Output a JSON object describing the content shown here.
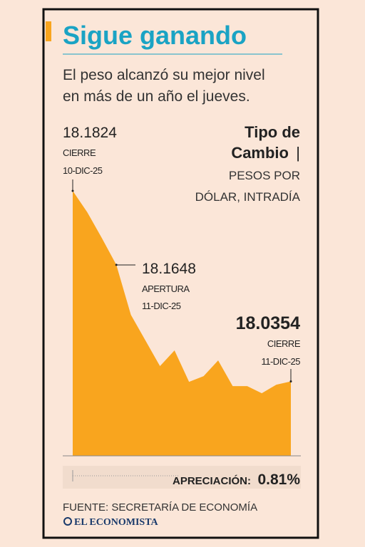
{
  "title": "Sigue ganando",
  "subtitle": [
    "El peso alcanzó su mejor nivel",
    "en más de un año el jueves."
  ],
  "chart_data": {
    "type": "area",
    "title_lines": [
      "Tipo de",
      "Cambio"
    ],
    "title_separator": "|",
    "subtitle_lines": [
      "PESOS POR",
      "DÓLAR, INTRADÍA"
    ],
    "categories": [
      null,
      null,
      null,
      null,
      null,
      null,
      null,
      null,
      null,
      null,
      null,
      null,
      null,
      null,
      null,
      null
    ],
    "values": [
      18.1824,
      18.1659,
      18.1461,
      18.1253,
      18.0868,
      18.067,
      18.0472,
      18.0593,
      18.0351,
      18.0395,
      18.0516,
      18.0318,
      18.0318,
      18.0263,
      18.0329,
      18.0354
    ],
    "color": "#f9a51e",
    "ylim": [
      17.978,
      18.1824
    ],
    "annotations": [
      {
        "value": "18.1824",
        "label": "CIERRE",
        "date": "10-DIC-25"
      },
      {
        "value": "18.1648",
        "label": "APERTURA",
        "date": "11-DIC-25"
      },
      {
        "value": "18.0354",
        "label": "CIERRE",
        "date": "11-DIC-25"
      }
    ],
    "footer": {
      "label": "APRECIACIÓN:",
      "value": "0.81%"
    }
  },
  "source": "FUENTE: SECRETARÍA DE ECONOMÍA",
  "brand": "EL ECONOMISTA"
}
